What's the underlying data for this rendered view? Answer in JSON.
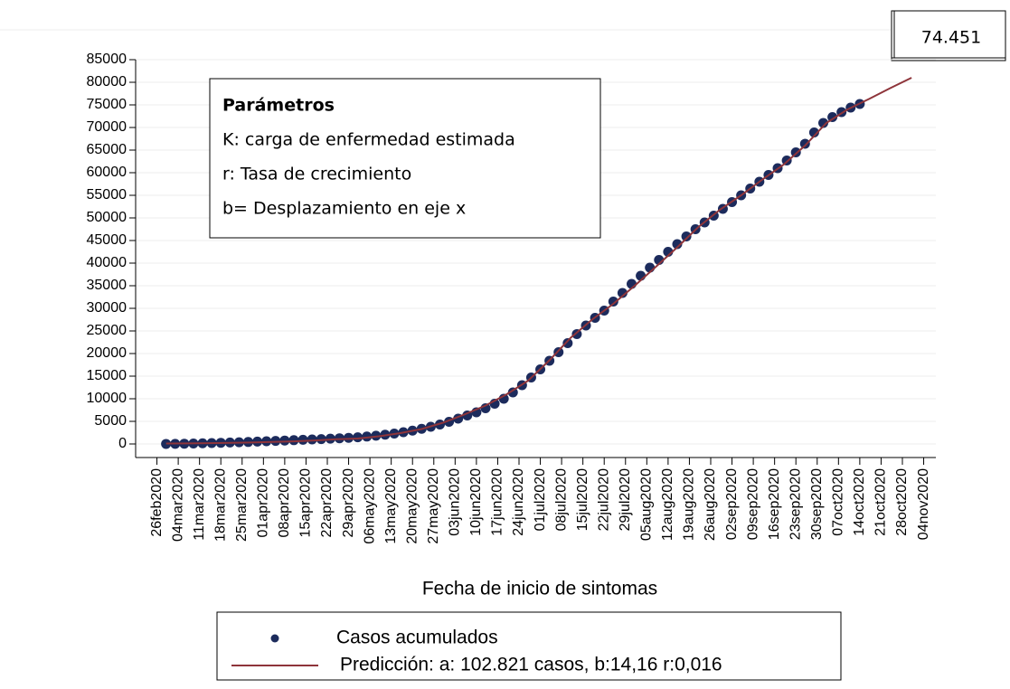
{
  "chart_data": {
    "type": "scatter",
    "x_label": "Fecha de inicio de sintomas",
    "value_box": "74.451",
    "parameters": {
      "title": "Parámetros",
      "lines": [
        "K: carga de enfermedad estimada",
        "r: Tasa de crecimiento",
        "b= Desplazamiento en eje x"
      ]
    },
    "xlim": [
      "2020-02-19",
      "2020-11-08"
    ],
    "xticks": [
      {
        "value": "2020-02-26",
        "label": "26feb2020"
      },
      {
        "value": "2020-03-04",
        "label": "04mar2020"
      },
      {
        "value": "2020-03-11",
        "label": "11mar2020"
      },
      {
        "value": "2020-03-18",
        "label": "18mar2020"
      },
      {
        "value": "2020-03-25",
        "label": "25mar2020"
      },
      {
        "value": "2020-04-01",
        "label": "01apr2020"
      },
      {
        "value": "2020-04-08",
        "label": "08apr2020"
      },
      {
        "value": "2020-04-15",
        "label": "15apr2020"
      },
      {
        "value": "2020-04-22",
        "label": "22apr2020"
      },
      {
        "value": "2020-04-29",
        "label": "29apr2020"
      },
      {
        "value": "2020-05-06",
        "label": "06may2020"
      },
      {
        "value": "2020-05-13",
        "label": "13may2020"
      },
      {
        "value": "2020-05-20",
        "label": "20may2020"
      },
      {
        "value": "2020-05-27",
        "label": "27may2020"
      },
      {
        "value": "2020-06-03",
        "label": "03jun2020"
      },
      {
        "value": "2020-06-10",
        "label": "10jun2020"
      },
      {
        "value": "2020-06-17",
        "label": "17jun2020"
      },
      {
        "value": "2020-06-24",
        "label": "24jun2020"
      },
      {
        "value": "2020-07-01",
        "label": "01jul2020"
      },
      {
        "value": "2020-07-08",
        "label": "08jul2020"
      },
      {
        "value": "2020-07-15",
        "label": "15jul2020"
      },
      {
        "value": "2020-07-22",
        "label": "22jul2020"
      },
      {
        "value": "2020-07-29",
        "label": "29jul2020"
      },
      {
        "value": "2020-08-05",
        "label": "05aug2020"
      },
      {
        "value": "2020-08-12",
        "label": "12aug2020"
      },
      {
        "value": "2020-08-19",
        "label": "19aug2020"
      },
      {
        "value": "2020-08-26",
        "label": "26aug2020"
      },
      {
        "value": "2020-09-02",
        "label": "02sep2020"
      },
      {
        "value": "2020-09-09",
        "label": "09sep2020"
      },
      {
        "value": "2020-09-16",
        "label": "16sep2020"
      },
      {
        "value": "2020-09-23",
        "label": "23sep2020"
      },
      {
        "value": "2020-09-30",
        "label": "30sep2020"
      },
      {
        "value": "2020-10-07",
        "label": "07oct2020"
      },
      {
        "value": "2020-10-14",
        "label": "14oct2020"
      },
      {
        "value": "2020-10-21",
        "label": "21oct2020"
      },
      {
        "value": "2020-10-28",
        "label": "28oct2020"
      },
      {
        "value": "2020-11-04",
        "label": "04nov2020"
      }
    ],
    "ylim": [
      -3000,
      85000
    ],
    "yticks": [
      0,
      5000,
      10000,
      15000,
      20000,
      25000,
      30000,
      35000,
      40000,
      45000,
      50000,
      55000,
      60000,
      65000,
      70000,
      75000,
      80000,
      85000
    ],
    "grid": true,
    "series": [
      {
        "name": "Casos acumulados",
        "type": "scatter",
        "color": "#1c2b5c",
        "x": [
          "2020-02-29",
          "2020-03-03",
          "2020-03-06",
          "2020-03-09",
          "2020-03-12",
          "2020-03-15",
          "2020-03-18",
          "2020-03-21",
          "2020-03-24",
          "2020-03-27",
          "2020-03-30",
          "2020-04-02",
          "2020-04-05",
          "2020-04-08",
          "2020-04-11",
          "2020-04-14",
          "2020-04-17",
          "2020-04-20",
          "2020-04-23",
          "2020-04-26",
          "2020-04-29",
          "2020-05-02",
          "2020-05-05",
          "2020-05-08",
          "2020-05-11",
          "2020-05-14",
          "2020-05-17",
          "2020-05-20",
          "2020-05-23",
          "2020-05-26",
          "2020-05-29",
          "2020-06-01",
          "2020-06-04",
          "2020-06-07",
          "2020-06-10",
          "2020-06-13",
          "2020-06-16",
          "2020-06-19",
          "2020-06-22",
          "2020-06-25",
          "2020-06-28",
          "2020-07-01",
          "2020-07-04",
          "2020-07-07",
          "2020-07-10",
          "2020-07-13",
          "2020-07-16",
          "2020-07-19",
          "2020-07-22",
          "2020-07-25",
          "2020-07-28",
          "2020-07-31",
          "2020-08-03",
          "2020-08-06",
          "2020-08-09",
          "2020-08-12",
          "2020-08-15",
          "2020-08-18",
          "2020-08-21",
          "2020-08-24",
          "2020-08-27",
          "2020-08-30",
          "2020-09-02",
          "2020-09-05",
          "2020-09-08",
          "2020-09-11",
          "2020-09-14",
          "2020-09-17",
          "2020-09-20",
          "2020-09-23",
          "2020-09-26",
          "2020-09-29",
          "2020-10-02",
          "2020-10-05",
          "2020-10-08",
          "2020-10-11",
          "2020-10-14"
        ],
        "values": [
          10,
          30,
          60,
          100,
          150,
          200,
          260,
          320,
          380,
          440,
          520,
          600,
          680,
          760,
          840,
          920,
          1000,
          1080,
          1170,
          1260,
          1360,
          1480,
          1640,
          1830,
          2050,
          2300,
          2600,
          2950,
          3350,
          3800,
          4300,
          4900,
          5600,
          6300,
          7000,
          7900,
          8900,
          10000,
          11400,
          13000,
          14700,
          16500,
          18400,
          20300,
          22300,
          24300,
          26200,
          27900,
          29500,
          31500,
          33400,
          35400,
          37200,
          39000,
          40700,
          42500,
          44200,
          45900,
          47500,
          49000,
          50500,
          52000,
          53500,
          55000,
          56500,
          58000,
          59500,
          61000,
          62700,
          64500,
          66400,
          68900,
          71000,
          72300,
          73400,
          74400,
          75200
        ]
      },
      {
        "name": "Predicción: a: 102.821 casos, b:14,16 r:0,016",
        "type": "line",
        "color": "#8e343a",
        "x": [
          "2020-02-29",
          "2020-03-07",
          "2020-03-14",
          "2020-03-21",
          "2020-03-28",
          "2020-04-04",
          "2020-04-11",
          "2020-04-18",
          "2020-04-25",
          "2020-05-02",
          "2020-05-09",
          "2020-05-16",
          "2020-05-23",
          "2020-05-30",
          "2020-06-06",
          "2020-06-13",
          "2020-06-20",
          "2020-06-27",
          "2020-07-04",
          "2020-07-11",
          "2020-07-18",
          "2020-07-25",
          "2020-08-01",
          "2020-08-08",
          "2020-08-15",
          "2020-08-22",
          "2020-08-29",
          "2020-09-05",
          "2020-09-12",
          "2020-09-19",
          "2020-09-26",
          "2020-10-03",
          "2020-10-10",
          "2020-10-17",
          "2020-10-24",
          "2020-10-31"
        ],
        "values": [
          100,
          130,
          180,
          240,
          330,
          440,
          590,
          790,
          1050,
          1200,
          1700,
          2400,
          3300,
          4700,
          6500,
          8500,
          11000,
          14000,
          18500,
          23500,
          27500,
          31000,
          35000,
          39200,
          43500,
          48000,
          51800,
          55000,
          58500,
          61800,
          66000,
          71000,
          74000,
          76300,
          78700,
          81000
        ]
      }
    ]
  }
}
